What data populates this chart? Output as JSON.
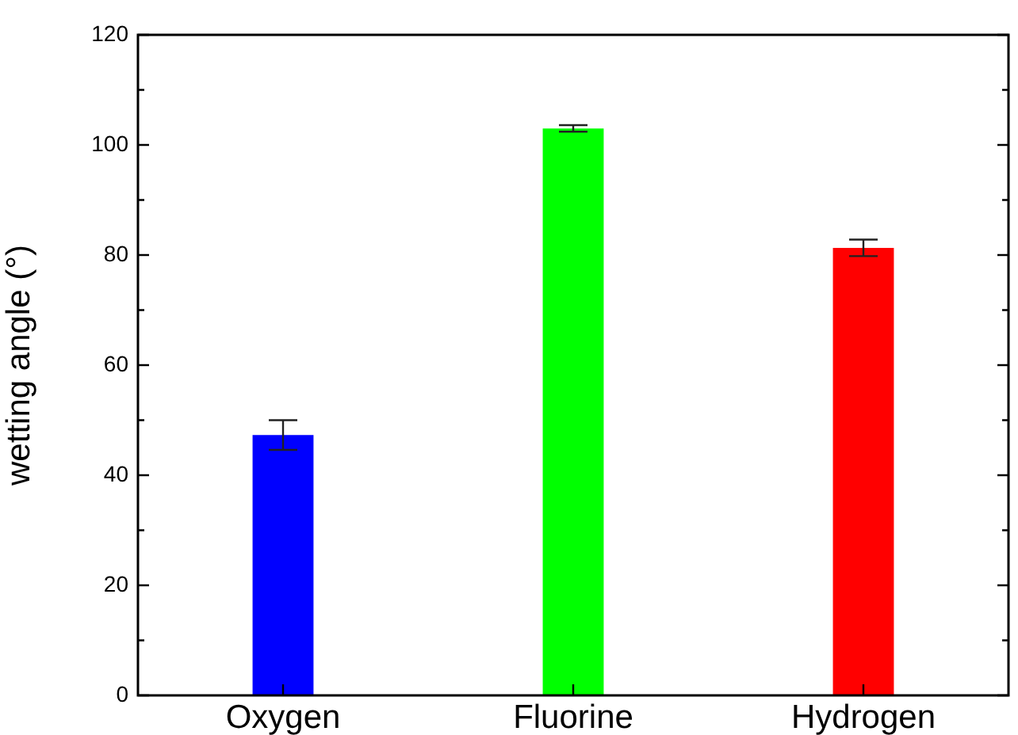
{
  "chart_data": {
    "type": "bar",
    "ylabel": "wetting angle (°)",
    "categories": [
      "Oxygen",
      "Fluorine",
      "Hydrogen"
    ],
    "values": [
      47.3,
      103.0,
      81.3
    ],
    "colors": [
      "#0000ff",
      "#00ff00",
      "#ff0000"
    ],
    "errors": [
      2.7,
      0.6,
      1.5
    ],
    "ylim": [
      0,
      120
    ],
    "yticks": [
      0,
      {
        "value": 10,
        "label": null
      },
      20,
      {
        "value": 30,
        "label": null
      },
      40,
      {
        "value": 50,
        "label": null
      },
      60,
      {
        "value": 70,
        "label": null
      },
      80,
      {
        "value": 90,
        "label": null
      },
      100,
      {
        "value": 110,
        "label": null
      },
      120
    ],
    "grid": false,
    "legend": false
  }
}
